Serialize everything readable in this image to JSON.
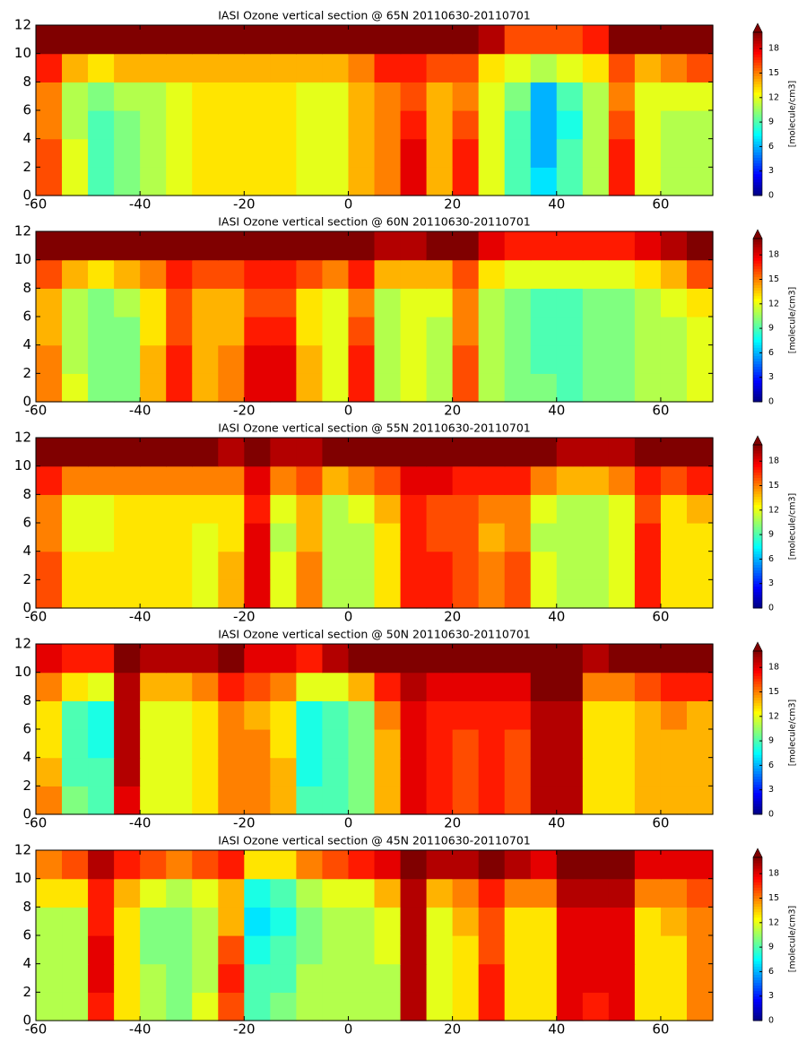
{
  "chart_data": [
    {
      "type": "heatmap",
      "title": "IASI Ozone vertical section @ 65N 20110630-20110701",
      "cmap": "jet",
      "x": [
        -57.5,
        -52.5,
        -47.5,
        -42.5,
        -37.5,
        -32.5,
        -27.5,
        -22.5,
        -17.5,
        -12.5,
        -7.5,
        -2.5,
        2.5,
        7.5,
        12.5,
        17.5,
        22.5,
        27.5,
        32.5,
        37.5,
        42.5,
        47.5,
        52.5,
        57.5,
        62.5,
        67.5
      ],
      "y": [
        1,
        3,
        5,
        7,
        9,
        11
      ],
      "z": [
        [
          16,
          12,
          9,
          10,
          11,
          12,
          13,
          13,
          13,
          13,
          12,
          12,
          14,
          15,
          18,
          14,
          17,
          12,
          9,
          7,
          9,
          11,
          17,
          12,
          11,
          11
        ],
        [
          16,
          12,
          9,
          10,
          11,
          12,
          13,
          13,
          13,
          13,
          12,
          12,
          14,
          15,
          18,
          14,
          17,
          12,
          9,
          6,
          9,
          11,
          17,
          12,
          11,
          11
        ],
        [
          15,
          11,
          9,
          10,
          11,
          12,
          13,
          13,
          13,
          13,
          12,
          12,
          14,
          15,
          17,
          14,
          16,
          12,
          9,
          6,
          8,
          11,
          16,
          12,
          11,
          11
        ],
        [
          15,
          11,
          10,
          11,
          11,
          12,
          13,
          13,
          13,
          13,
          12,
          12,
          14,
          15,
          16,
          14,
          15,
          12,
          10,
          6,
          9,
          11,
          15,
          12,
          12,
          12
        ],
        [
          17,
          14,
          13,
          14,
          14,
          14,
          14,
          14,
          14,
          14,
          14,
          14,
          15,
          17,
          17,
          16,
          16,
          13,
          12,
          11,
          12,
          13,
          16,
          14,
          15,
          16
        ],
        [
          20,
          20,
          20,
          20,
          20,
          20,
          20,
          20,
          20,
          20,
          20,
          20,
          20,
          20,
          20,
          20,
          20,
          19,
          16,
          16,
          16,
          17,
          20,
          20,
          20,
          20
        ]
      ],
      "xlim": [
        -60,
        70
      ],
      "ylim": [
        0,
        12
      ],
      "xticks": [
        -60,
        -40,
        -20,
        0,
        20,
        40,
        60
      ],
      "yticks": [
        0,
        2,
        4,
        6,
        8,
        10,
        12
      ],
      "colorbar": {
        "label": "[molecule/cm3]",
        "lim": [
          0,
          20
        ],
        "ticks": [
          0,
          3,
          6,
          9,
          12,
          15,
          18
        ]
      }
    },
    {
      "type": "heatmap",
      "title": "IASI Ozone vertical section @ 60N 20110630-20110701",
      "cmap": "jet",
      "x": [
        -57.5,
        -52.5,
        -47.5,
        -42.5,
        -37.5,
        -32.5,
        -27.5,
        -22.5,
        -17.5,
        -12.5,
        -7.5,
        -2.5,
        2.5,
        7.5,
        12.5,
        17.5,
        22.5,
        27.5,
        32.5,
        37.5,
        42.5,
        47.5,
        52.5,
        57.5,
        62.5,
        67.5
      ],
      "y": [
        1,
        3,
        5,
        7,
        9,
        11
      ],
      "z": [
        [
          15,
          12,
          10,
          10,
          14,
          17,
          14,
          15,
          18,
          18,
          14,
          12,
          17,
          11,
          12,
          11,
          16,
          11,
          10,
          10,
          9,
          10,
          10,
          11,
          11,
          12
        ],
        [
          15,
          11,
          10,
          10,
          14,
          17,
          14,
          15,
          18,
          18,
          14,
          12,
          17,
          11,
          12,
          11,
          16,
          11,
          10,
          9,
          9,
          10,
          10,
          11,
          11,
          12
        ],
        [
          14,
          11,
          10,
          10,
          13,
          16,
          14,
          14,
          17,
          17,
          13,
          12,
          16,
          11,
          12,
          11,
          15,
          11,
          10,
          9,
          9,
          10,
          10,
          11,
          11,
          12
        ],
        [
          14,
          11,
          10,
          11,
          13,
          16,
          14,
          14,
          16,
          16,
          13,
          12,
          15,
          11,
          12,
          12,
          15,
          11,
          10,
          9,
          9,
          10,
          10,
          11,
          12,
          13
        ],
        [
          16,
          14,
          13,
          14,
          15,
          17,
          16,
          16,
          17,
          17,
          16,
          15,
          17,
          14,
          14,
          14,
          16,
          13,
          12,
          12,
          12,
          12,
          12,
          13,
          14,
          16
        ],
        [
          20,
          20,
          20,
          20,
          20,
          20,
          20,
          20,
          20,
          20,
          20,
          20,
          20,
          19,
          19,
          20,
          20,
          18,
          17,
          17,
          17,
          17,
          17,
          18,
          19,
          20
        ]
      ],
      "xlim": [
        -60,
        70
      ],
      "ylim": [
        0,
        12
      ],
      "xticks": [
        -60,
        -40,
        -20,
        0,
        20,
        40,
        60
      ],
      "yticks": [
        0,
        2,
        4,
        6,
        8,
        10,
        12
      ],
      "colorbar": {
        "label": "[molecule/cm3]",
        "lim": [
          0,
          20
        ],
        "ticks": [
          0,
          3,
          6,
          9,
          12,
          15,
          18
        ]
      }
    },
    {
      "type": "heatmap",
      "title": "IASI Ozone vertical section @ 55N 20110630-20110701",
      "cmap": "jet",
      "x": [
        -57.5,
        -52.5,
        -47.5,
        -42.5,
        -37.5,
        -32.5,
        -27.5,
        -22.5,
        -17.5,
        -12.5,
        -7.5,
        -2.5,
        2.5,
        7.5,
        12.5,
        17.5,
        22.5,
        27.5,
        32.5,
        37.5,
        42.5,
        47.5,
        52.5,
        57.5,
        62.5,
        67.5
      ],
      "y": [
        1,
        3,
        5,
        7,
        9,
        11
      ],
      "z": [
        [
          16,
          13,
          13,
          13,
          13,
          13,
          12,
          14,
          18,
          12,
          15,
          11,
          11,
          13,
          17,
          17,
          16,
          15,
          16,
          12,
          11,
          11,
          12,
          17,
          13,
          13
        ],
        [
          16,
          13,
          13,
          13,
          13,
          13,
          12,
          14,
          18,
          12,
          15,
          11,
          11,
          13,
          17,
          17,
          16,
          15,
          16,
          12,
          11,
          11,
          12,
          17,
          13,
          13
        ],
        [
          15,
          12,
          12,
          13,
          13,
          13,
          12,
          13,
          18,
          11,
          14,
          11,
          11,
          13,
          17,
          16,
          16,
          14,
          15,
          11,
          11,
          11,
          12,
          17,
          13,
          13
        ],
        [
          15,
          12,
          12,
          13,
          13,
          13,
          13,
          13,
          17,
          12,
          14,
          11,
          12,
          14,
          17,
          16,
          16,
          15,
          15,
          12,
          11,
          11,
          12,
          16,
          13,
          14
        ],
        [
          17,
          15,
          15,
          15,
          15,
          15,
          15,
          15,
          18,
          15,
          16,
          14,
          15,
          16,
          18,
          18,
          17,
          17,
          17,
          15,
          14,
          14,
          15,
          17,
          16,
          17
        ],
        [
          20,
          20,
          20,
          20,
          20,
          20,
          20,
          19,
          20,
          19,
          19,
          20,
          20,
          20,
          20,
          20,
          20,
          20,
          20,
          20,
          19,
          19,
          19,
          20,
          20,
          20
        ]
      ],
      "xlim": [
        -60,
        70
      ],
      "ylim": [
        0,
        12
      ],
      "xticks": [
        -60,
        -40,
        -20,
        0,
        20,
        40,
        60
      ],
      "yticks": [
        0,
        2,
        4,
        6,
        8,
        10,
        12
      ],
      "colorbar": {
        "label": "[molecule/cm3]",
        "lim": [
          0,
          20
        ],
        "ticks": [
          0,
          3,
          6,
          9,
          12,
          15,
          18
        ]
      }
    },
    {
      "type": "heatmap",
      "title": "IASI Ozone vertical section @ 50N 20110630-20110701",
      "cmap": "jet",
      "x": [
        -57.5,
        -52.5,
        -47.5,
        -42.5,
        -37.5,
        -32.5,
        -27.5,
        -22.5,
        -17.5,
        -12.5,
        -7.5,
        -2.5,
        2.5,
        7.5,
        12.5,
        17.5,
        22.5,
        27.5,
        32.5,
        37.5,
        42.5,
        47.5,
        52.5,
        57.5,
        62.5,
        67.5
      ],
      "y": [
        1,
        3,
        5,
        7,
        9,
        11
      ],
      "z": [
        [
          15,
          10,
          9,
          18,
          12,
          12,
          13,
          15,
          15,
          14,
          9,
          9,
          10,
          14,
          18,
          17,
          16,
          17,
          16,
          19,
          19,
          13,
          13,
          14,
          14,
          14
        ],
        [
          14,
          9,
          9,
          19,
          12,
          12,
          13,
          15,
          15,
          14,
          8,
          9,
          10,
          14,
          18,
          17,
          16,
          17,
          16,
          19,
          19,
          13,
          13,
          14,
          14,
          14
        ],
        [
          13,
          9,
          8,
          19,
          12,
          12,
          13,
          15,
          15,
          13,
          8,
          9,
          10,
          14,
          18,
          17,
          16,
          17,
          16,
          19,
          19,
          13,
          13,
          14,
          14,
          14
        ],
        [
          13,
          9,
          8,
          19,
          12,
          12,
          13,
          15,
          14,
          13,
          8,
          9,
          10,
          15,
          18,
          17,
          17,
          17,
          17,
          19,
          19,
          13,
          13,
          14,
          15,
          14
        ],
        [
          15,
          13,
          12,
          19,
          14,
          14,
          15,
          17,
          16,
          15,
          12,
          12,
          14,
          17,
          19,
          18,
          18,
          18,
          18,
          20,
          20,
          15,
          15,
          16,
          17,
          17
        ],
        [
          18,
          17,
          17,
          20,
          19,
          19,
          19,
          20,
          18,
          18,
          17,
          19,
          20,
          20,
          20,
          20,
          20,
          20,
          20,
          20,
          20,
          19,
          20,
          20,
          20,
          20
        ]
      ],
      "xlim": [
        -60,
        70
      ],
      "ylim": [
        0,
        12
      ],
      "xticks": [
        -60,
        -40,
        -20,
        0,
        20,
        40,
        60
      ],
      "yticks": [
        0,
        2,
        4,
        6,
        8,
        10,
        12
      ],
      "colorbar": {
        "label": "[molecule/cm3]",
        "lim": [
          0,
          20
        ],
        "ticks": [
          0,
          3,
          6,
          9,
          12,
          15,
          18
        ]
      }
    },
    {
      "type": "heatmap",
      "title": "IASI Ozone vertical section @ 45N 20110630-20110701",
      "cmap": "jet",
      "x": [
        -57.5,
        -52.5,
        -47.5,
        -42.5,
        -37.5,
        -32.5,
        -27.5,
        -22.5,
        -17.5,
        -12.5,
        -7.5,
        -2.5,
        2.5,
        7.5,
        12.5,
        17.5,
        22.5,
        27.5,
        32.5,
        37.5,
        42.5,
        47.5,
        52.5,
        57.5,
        62.5,
        67.5
      ],
      "y": [
        1,
        3,
        5,
        7,
        9,
        11
      ],
      "z": [
        [
          11,
          11,
          17,
          13,
          11,
          10,
          12,
          16,
          9,
          10,
          11,
          11,
          11,
          11,
          19,
          12,
          13,
          17,
          13,
          13,
          18,
          17,
          18,
          13,
          13,
          15
        ],
        [
          11,
          11,
          18,
          13,
          11,
          10,
          11,
          17,
          9,
          9,
          11,
          11,
          11,
          11,
          19,
          12,
          13,
          17,
          13,
          13,
          18,
          18,
          18,
          13,
          13,
          15
        ],
        [
          11,
          11,
          18,
          13,
          10,
          10,
          11,
          16,
          8,
          9,
          10,
          11,
          11,
          12,
          19,
          12,
          13,
          16,
          13,
          13,
          18,
          18,
          18,
          13,
          13,
          15
        ],
        [
          11,
          11,
          17,
          13,
          10,
          10,
          11,
          14,
          7,
          8,
          10,
          11,
          11,
          12,
          19,
          12,
          14,
          16,
          13,
          13,
          18,
          18,
          18,
          13,
          14,
          15
        ],
        [
          13,
          13,
          17,
          14,
          12,
          11,
          12,
          14,
          8,
          9,
          11,
          12,
          12,
          14,
          19,
          14,
          15,
          17,
          15,
          15,
          19,
          19,
          19,
          15,
          15,
          16
        ],
        [
          15,
          16,
          19,
          17,
          16,
          15,
          16,
          17,
          13,
          13,
          15,
          16,
          17,
          18,
          20,
          19,
          19,
          20,
          19,
          18,
          20,
          20,
          20,
          18,
          18,
          18
        ]
      ],
      "xlim": [
        -60,
        70
      ],
      "ylim": [
        0,
        12
      ],
      "xticks": [
        -60,
        -40,
        -20,
        0,
        20,
        40,
        60
      ],
      "yticks": [
        0,
        2,
        4,
        6,
        8,
        10,
        12
      ],
      "colorbar": {
        "label": "[molecule/cm3]",
        "lim": [
          0,
          20
        ],
        "ticks": [
          0,
          3,
          6,
          9,
          12,
          15,
          18
        ]
      }
    }
  ]
}
